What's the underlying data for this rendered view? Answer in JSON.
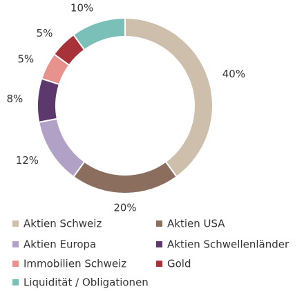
{
  "chart_data": {
    "type": "donut",
    "categories": [
      "Aktien Schweiz",
      "Aktien USA",
      "Aktien Europa",
      "Aktien Schwellenländer",
      "Immobilien Schweiz",
      "Gold",
      "Liquidität / Obligationen"
    ],
    "values": [
      40,
      20,
      12,
      8,
      5,
      5,
      10
    ],
    "value_labels": [
      "40%",
      "20%",
      "12%",
      "8%",
      "5%",
      "5%",
      "10%"
    ],
    "colors": [
      "#cdbfab",
      "#8b6e5d",
      "#b2a1c6",
      "#5d386c",
      "#e8928d",
      "#a8323a",
      "#7bbfb9"
    ]
  }
}
